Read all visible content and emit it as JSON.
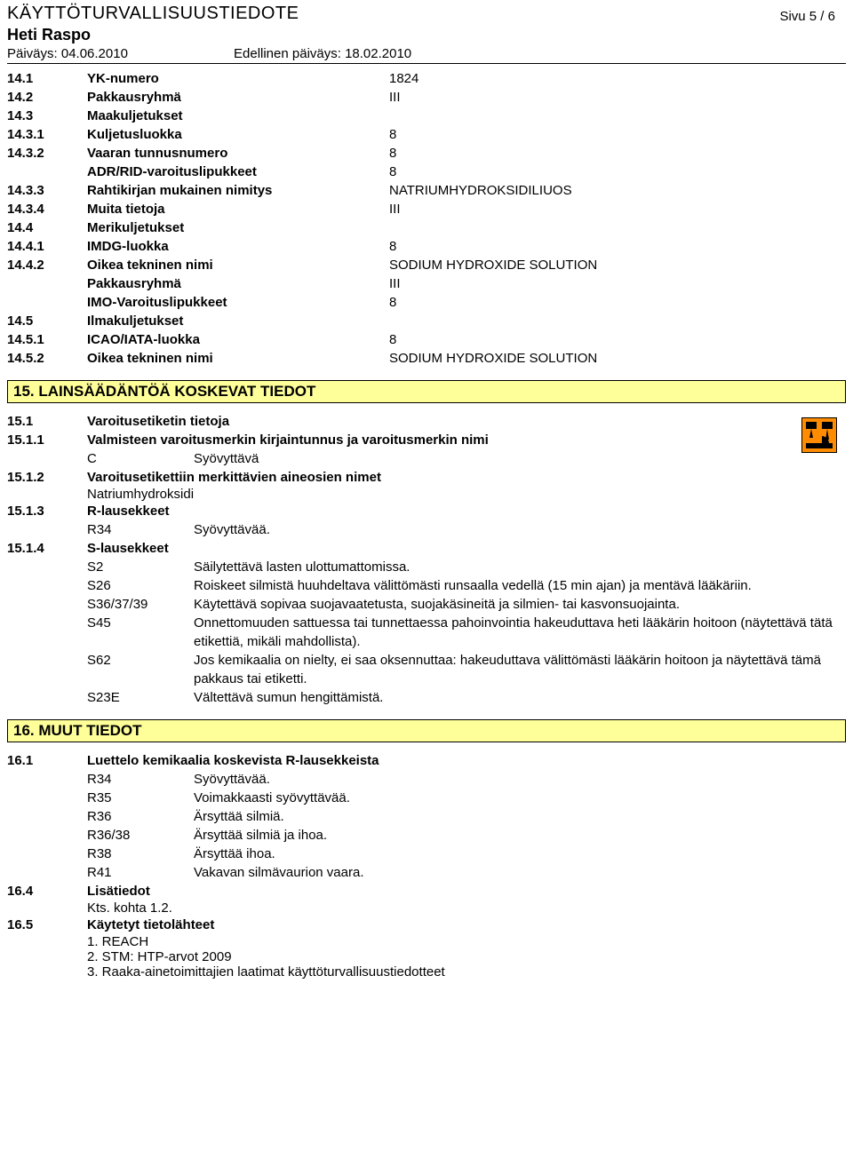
{
  "header": {
    "doc_type": "KÄYTTÖTURVALLISUUSTIEDOTE",
    "product": "Heti Raspo",
    "page": "Sivu  5 / 6",
    "date_label": "Päiväys: 04.06.2010",
    "prev_date_label": "Edellinen päiväys: 18.02.2010"
  },
  "s14": [
    {
      "n": "14.1",
      "l": "YK-numero",
      "v": "1824"
    },
    {
      "n": "14.2",
      "l": "Pakkausryhmä",
      "v": "III"
    },
    {
      "n": "14.3",
      "l": "Maakuljetukset",
      "v": ""
    },
    {
      "n": "14.3.1",
      "l": "Kuljetusluokka",
      "v": "8"
    },
    {
      "n": "14.3.2",
      "l": "Vaaran tunnusnumero",
      "v": "8"
    },
    {
      "n": "",
      "l": "ADR/RID-varoituslipukkeet",
      "v": "8"
    },
    {
      "n": "14.3.3",
      "l": "Rahtikirjan mukainen nimitys",
      "v": "NATRIUMHYDROKSIDILIUOS"
    },
    {
      "n": "14.3.4",
      "l": "Muita tietoja",
      "v": "III"
    },
    {
      "n": "14.4",
      "l": "Merikuljetukset",
      "v": ""
    },
    {
      "n": "14.4.1",
      "l": "IMDG-luokka",
      "v": "8"
    },
    {
      "n": "14.4.2",
      "l": "Oikea tekninen nimi",
      "v": "SODIUM HYDROXIDE SOLUTION"
    },
    {
      "n": "",
      "l": "Pakkausryhmä",
      "v": "III"
    },
    {
      "n": "",
      "l": "IMO-Varoituslipukkeet",
      "v": "8"
    },
    {
      "n": "14.5",
      "l": "Ilmakuljetukset",
      "v": ""
    },
    {
      "n": "14.5.1",
      "l": "ICAO/IATA-luokka",
      "v": "8"
    },
    {
      "n": "14.5.2",
      "l": "Oikea tekninen nimi",
      "v": "SODIUM HYDROXIDE SOLUTION"
    }
  ],
  "s15": {
    "title": "15. LAINSÄÄDÄNTÖÄ KOSKEVAT TIEDOT",
    "r1": {
      "n": "15.1",
      "l": "Varoitusetiketin tietoja"
    },
    "r2": {
      "n": "15.1.1",
      "l": "Valmisteen varoitusmerkin kirjaintunnus ja varoitusmerkin nimi",
      "c": "C",
      "cv": "Syövyttävä"
    },
    "r3": {
      "n": "15.1.2",
      "l": "Varoitusetikettiin merkittävien aineosien nimet",
      "sub": "Natriumhydroksidi"
    },
    "r4": {
      "n": "15.1.3",
      "l": "R-lausekkeet"
    },
    "r4list": [
      {
        "c": "R34",
        "v": "Syövyttävää."
      }
    ],
    "r5": {
      "n": "15.1.4",
      "l": "S-lausekkeet"
    },
    "slist": [
      {
        "c": "S2",
        "v": "Säilytettävä lasten ulottumattomissa."
      },
      {
        "c": "S26",
        "v": "Roiskeet silmistä huuhdeltava välittömästi runsaalla vedellä (15 min ajan) ja mentävä lääkäriin."
      },
      {
        "c": "S36/37/39",
        "v": "Käytettävä sopivaa suojavaatetusta, suojakäsineitä ja silmien- tai kasvonsuojainta."
      },
      {
        "c": "S45",
        "v": "Onnettomuuden sattuessa tai tunnettaessa pahoinvointia hakeuduttava heti lääkärin hoitoon (näytettävä tätä etikettiä, mikäli mahdollista)."
      },
      {
        "c": "S62",
        "v": "Jos kemikaalia on nielty, ei saa oksennuttaa: hakeuduttava välittömästi lääkärin hoitoon ja näytettävä tämä pakkaus tai etiketti."
      },
      {
        "c": "S23E",
        "v": "Vältettävä sumun hengittämistä."
      }
    ]
  },
  "s16": {
    "title": "16. MUUT TIEDOT",
    "r1": {
      "n": "16.1",
      "l": "Luettelo kemikaalia koskevista R-lausekkeista"
    },
    "rlist": [
      {
        "c": "R34",
        "v": "Syövyttävää."
      },
      {
        "c": "R35",
        "v": "Voimakkaasti syövyttävää."
      },
      {
        "c": "R36",
        "v": "Ärsyttää silmiä."
      },
      {
        "c": "R36/38",
        "v": "Ärsyttää silmiä ja ihoa."
      },
      {
        "c": "R38",
        "v": "Ärsyttää ihoa."
      },
      {
        "c": "R41",
        "v": "Vakavan silmävaurion vaara."
      }
    ],
    "r2": {
      "n": "16.4",
      "l": "Lisätiedot",
      "sub": "Kts. kohta 1.2."
    },
    "r3": {
      "n": "16.5",
      "l": "Käytetyt tietolähteet"
    },
    "sources": [
      "1. REACH",
      "2. STM: HTP-arvot 2009",
      "3. Raaka-ainetoimittajien laatimat käyttöturvallisuustiedotteet"
    ]
  }
}
